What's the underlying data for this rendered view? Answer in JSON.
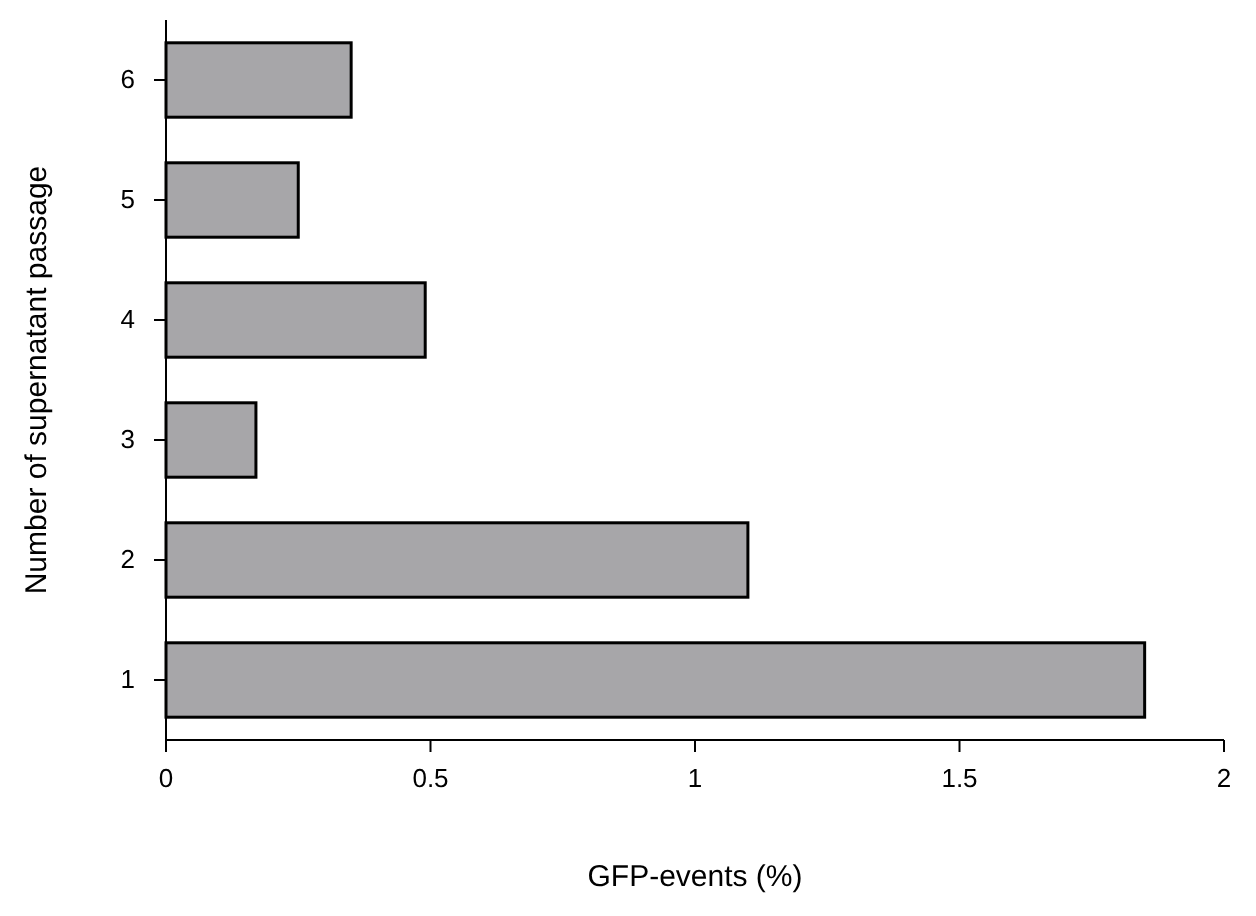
{
  "chart_data": {
    "type": "bar",
    "orientation": "horizontal",
    "xlabel": "GFP-events (%)",
    "ylabel": "Number of supernatant passage",
    "categories": [
      "6",
      "5",
      "4",
      "3",
      "2",
      "1"
    ],
    "values": [
      0.35,
      0.25,
      0.49,
      0.17,
      1.1,
      1.85
    ],
    "color": "#a7a6a9",
    "xlim": [
      0,
      2
    ],
    "xticks": [
      0,
      0.5,
      1,
      1.5,
      2
    ],
    "grid": false
  }
}
